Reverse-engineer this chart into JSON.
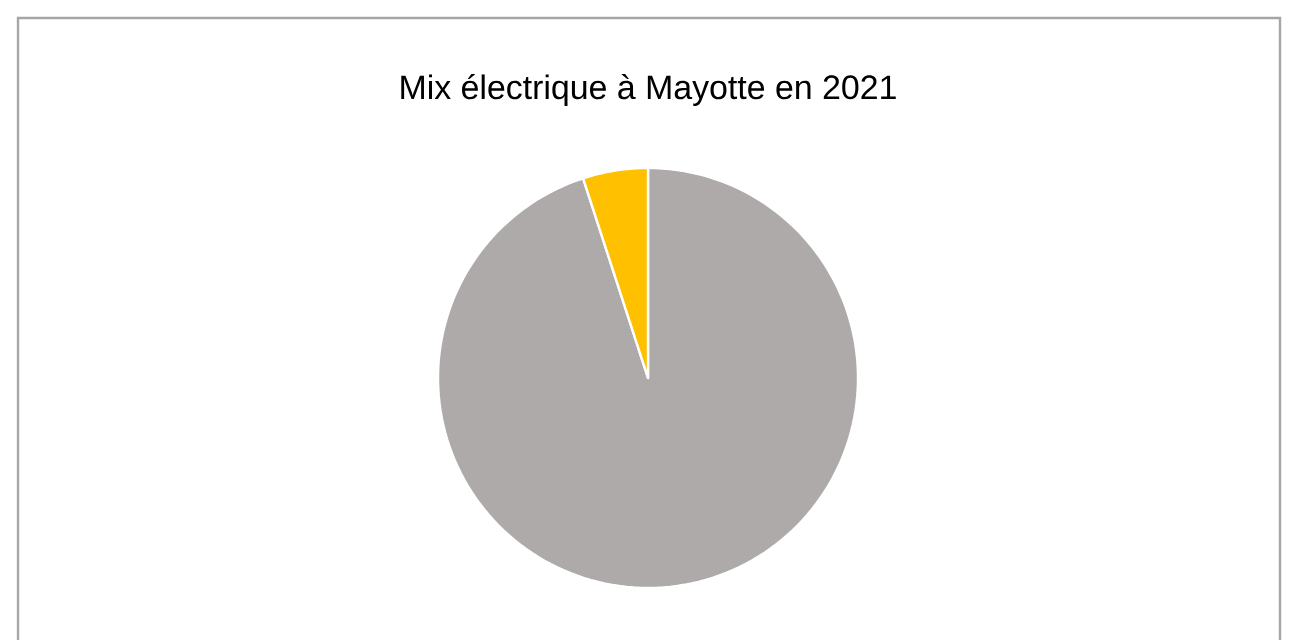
{
  "chart_data": {
    "type": "pie",
    "title": "Mix électrique à Mayotte en 2021",
    "categories": [
      null,
      null
    ],
    "values": [
      95,
      5
    ],
    "colors": [
      "#aeaaaa",
      "#ffc000"
    ]
  }
}
